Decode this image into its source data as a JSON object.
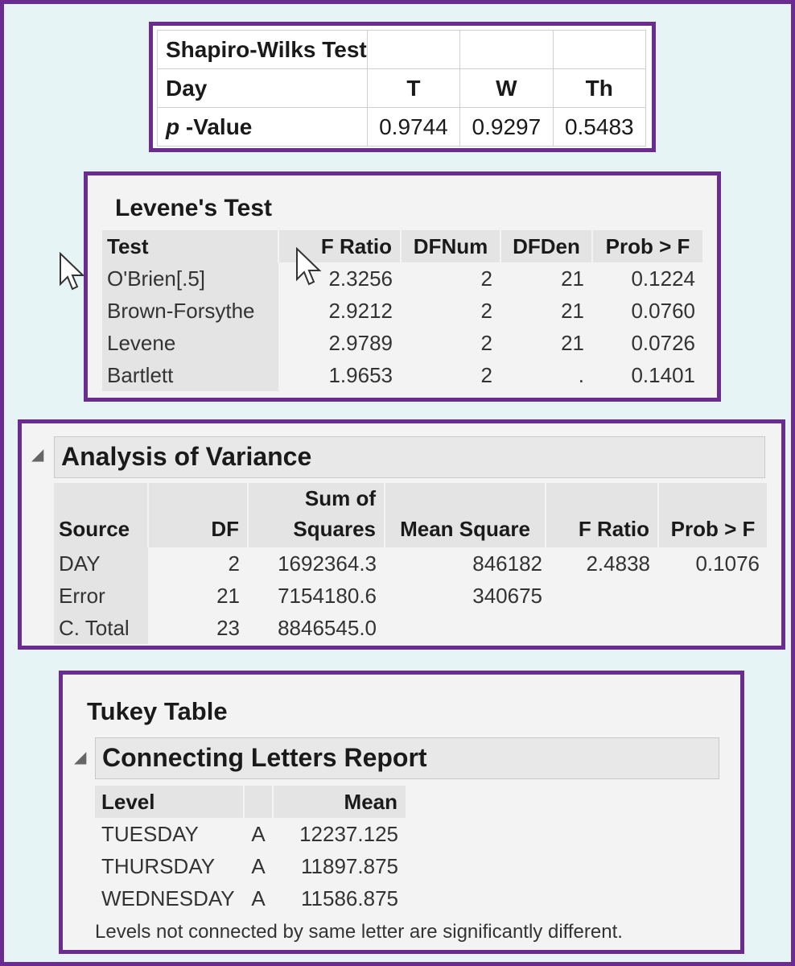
{
  "shapiro": {
    "title": "Shapiro-Wilks Test",
    "day_label": "Day",
    "days": [
      "T",
      "W",
      "Th"
    ],
    "p_label_italic": "p",
    "p_label_rest": " -Value",
    "p_values": [
      "0.9744",
      "0.9297",
      "0.5483"
    ]
  },
  "levene": {
    "title": "Levene's Test",
    "headers": [
      "Test",
      "F Ratio",
      "DFNum",
      "DFDen",
      "Prob > F"
    ],
    "rows": [
      [
        "O'Brien[.5]",
        "2.3256",
        "2",
        "21",
        "0.1224"
      ],
      [
        "Brown-Forsythe",
        "2.9212",
        "2",
        "21",
        "0.0760"
      ],
      [
        "Levene",
        "2.9789",
        "2",
        "21",
        "0.0726"
      ],
      [
        "Bartlett",
        "1.9653",
        "2",
        ".",
        "0.1401"
      ]
    ]
  },
  "anova": {
    "title": "Analysis of Variance",
    "headers": [
      "Source",
      "DF",
      "Sum of",
      "Squares",
      "Mean Square",
      "F Ratio",
      "Prob > F"
    ],
    "rows": [
      [
        "DAY",
        "2",
        "1692364.3",
        "846182",
        "2.4838",
        "0.1076"
      ],
      [
        "Error",
        "21",
        "7154180.6",
        "340675",
        "",
        ""
      ],
      [
        "C. Total",
        "23",
        "8846545.0",
        "",
        "",
        ""
      ]
    ]
  },
  "tukey": {
    "title": "Tukey Table",
    "report_title": "Connecting Letters Report",
    "headers": [
      "Level",
      "",
      "Mean"
    ],
    "rows": [
      [
        "TUESDAY",
        "A",
        "12237.125"
      ],
      [
        "THURSDAY",
        "A",
        "11897.875"
      ],
      [
        "WEDNESDAY",
        "A",
        "11586.875"
      ]
    ],
    "note": "Levels not connected by same letter are significantly different."
  }
}
